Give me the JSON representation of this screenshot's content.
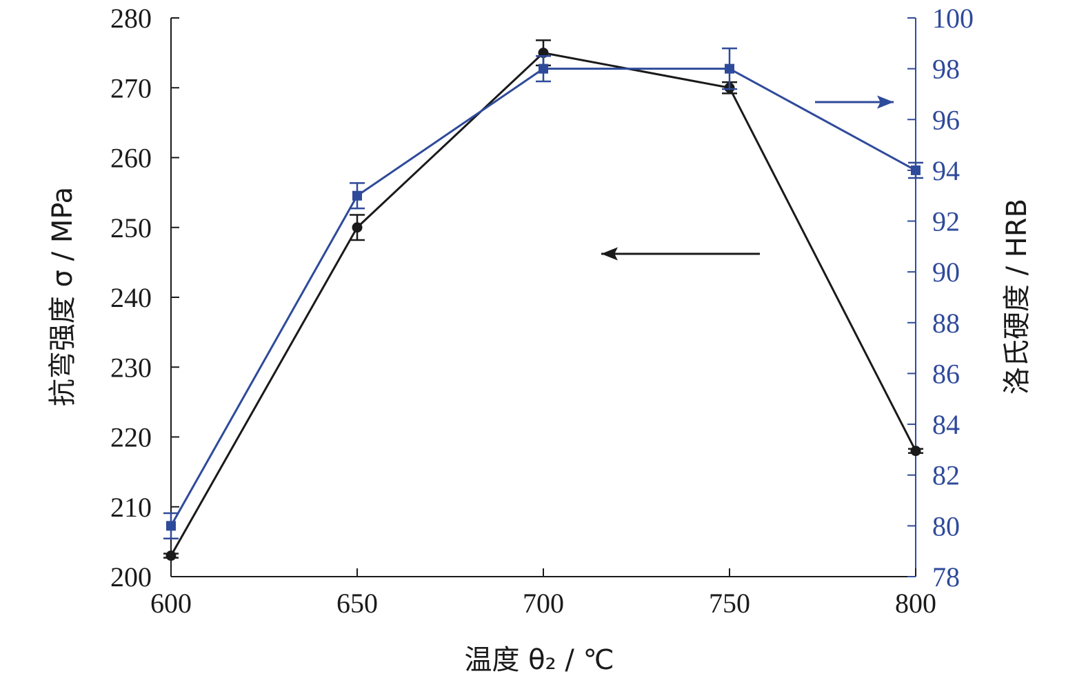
{
  "chart_data": {
    "type": "line",
    "x": [
      600,
      650,
      700,
      750,
      800
    ],
    "xlabel": "温度 θ₂ / ℃",
    "xlim": [
      600,
      800
    ],
    "xticks": [
      "600",
      "650",
      "700",
      "750",
      "800"
    ],
    "ylabel_left": "抗弯强度 σ / MPa",
    "ylim_left": [
      200,
      280
    ],
    "yticks_left": [
      "200",
      "210",
      "220",
      "230",
      "240",
      "250",
      "260",
      "270",
      "280"
    ],
    "ylabel_right": "洛氏硬度 / HRB",
    "ylim_right": [
      78,
      100
    ],
    "yticks_right": [
      "78",
      "80",
      "82",
      "84",
      "86",
      "88",
      "90",
      "92",
      "94",
      "96",
      "98",
      "100"
    ],
    "grid": false,
    "series": [
      {
        "axis": "left",
        "marker": "circle",
        "color": "#1a1a1a",
        "values": [
          203,
          250,
          275,
          270,
          218
        ],
        "error": [
          0.3,
          1.8,
          1.8,
          0.8,
          0.3
        ]
      },
      {
        "axis": "right",
        "marker": "square",
        "color": "#2e4a9a",
        "values": [
          80,
          93,
          98,
          98,
          94
        ],
        "error": [
          0.5,
          0.5,
          0.5,
          0.8,
          0.3
        ]
      }
    ],
    "annotations": [
      {
        "type": "arrow",
        "direction": "left",
        "color": "#1a1a1a",
        "meaning": "left-axis series"
      },
      {
        "type": "arrow",
        "direction": "right",
        "color": "#2e4a9a",
        "meaning": "right-axis series"
      }
    ]
  }
}
